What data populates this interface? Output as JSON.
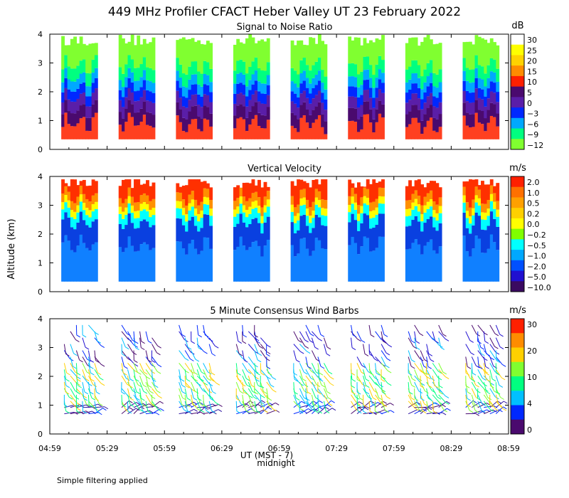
{
  "figure": {
    "title": "449 MHz Profiler CFACT Heber Valley UT 23 February 2022",
    "ylabel": "Altitude (km)",
    "xlabel": "UT  (MST - 7)",
    "xlabel_note": "midnight",
    "footnote": "Simple filtering applied",
    "x_ticks": [
      "04:59",
      "05:29",
      "05:59",
      "06:29",
      "06:59",
      "07:29",
      "07:59",
      "08:29",
      "08:59"
    ],
    "y_ticks": [
      "0",
      "1",
      "2",
      "3",
      "4"
    ]
  },
  "chart_data": [
    {
      "type": "heatmap",
      "title": "Signal to Noise Ratio",
      "units": "dB",
      "ylim": [
        0,
        4
      ],
      "x_range": [
        "04:59",
        "08:59"
      ],
      "colorbar_labels": [
        "30",
        "25",
        "20",
        "15",
        "10",
        "5",
        "0",
        "−3",
        "−6",
        "−9",
        "−12"
      ],
      "colorbar_colors": [
        "#ffffff",
        "#ffff00",
        "#ffd200",
        "#ff8c00",
        "#ff2000",
        "#4a0a6e",
        "#5a1ea8",
        "#0028ff",
        "#00a8ff",
        "#00ff80",
        "#80ff30"
      ],
      "profile_bands": [
        {
          "color": "#ff4020",
          "from": 0.35,
          "to": 0.9
        },
        {
          "color": "#4a0a6e",
          "from": 0.9,
          "to": 1.35
        },
        {
          "color": "#5a1ea8",
          "from": 1.35,
          "to": 1.75
        },
        {
          "color": "#0028ff",
          "from": 1.75,
          "to": 2.1
        },
        {
          "color": "#00a8ff",
          "from": 2.1,
          "to": 2.45
        },
        {
          "color": "#00ff80",
          "from": 2.45,
          "to": 2.9
        },
        {
          "color": "#80ff30",
          "from": 2.9,
          "to": 4.0
        }
      ]
    },
    {
      "type": "heatmap",
      "title": "Vertical Velocity",
      "units": "m/s",
      "ylim": [
        0,
        4
      ],
      "x_range": [
        "04:59",
        "08:59"
      ],
      "colorbar_labels": [
        "2.0",
        "1.0",
        "0.5",
        "0.2",
        "0.0",
        "−0.2",
        "−0.5",
        "−1.0",
        "−2.0",
        "−5.0",
        "−10.0"
      ],
      "colorbar_colors": [
        "#ff2000",
        "#ff7000",
        "#ffa000",
        "#ffd000",
        "#ffff00",
        "#80ff00",
        "#00ffff",
        "#00a8ff",
        "#0050ff",
        "#2010d0",
        "#3a0a60"
      ],
      "profile_bands": [
        {
          "color": "#1080ff",
          "from": 0.35,
          "to": 1.6
        },
        {
          "color": "#0a40e0",
          "from": 1.6,
          "to": 2.4
        },
        {
          "color": "#00ffff",
          "from": 2.4,
          "to": 2.75
        },
        {
          "color": "#ffff00",
          "from": 2.75,
          "to": 3.0
        },
        {
          "color": "#ff9000",
          "from": 3.0,
          "to": 3.3
        },
        {
          "color": "#ff3000",
          "from": 3.3,
          "to": 3.9
        }
      ]
    },
    {
      "type": "scatter",
      "title": "5 Minute Consensus Wind Barbs",
      "units": "m/s",
      "ylim": [
        0,
        4
      ],
      "x_range": [
        "04:59",
        "08:59"
      ],
      "colorbar_labels": [
        "30",
        "20",
        "10",
        "4",
        "0"
      ],
      "colorbar_colors": [
        "#ff2000",
        "#ff8c00",
        "#ffd000",
        "#80ff30",
        "#00ff80",
        "#00c0ff",
        "#0028ff",
        "#4a0a6e"
      ]
    }
  ],
  "data_segments": [
    {
      "start": "05:05",
      "end": "05:24"
    },
    {
      "start": "05:35",
      "end": "05:54"
    },
    {
      "start": "06:05",
      "end": "06:24"
    },
    {
      "start": "06:35",
      "end": "06:54"
    },
    {
      "start": "07:05",
      "end": "07:24"
    },
    {
      "start": "07:35",
      "end": "07:54"
    },
    {
      "start": "08:05",
      "end": "08:24"
    },
    {
      "start": "08:35",
      "end": "08:54"
    }
  ]
}
